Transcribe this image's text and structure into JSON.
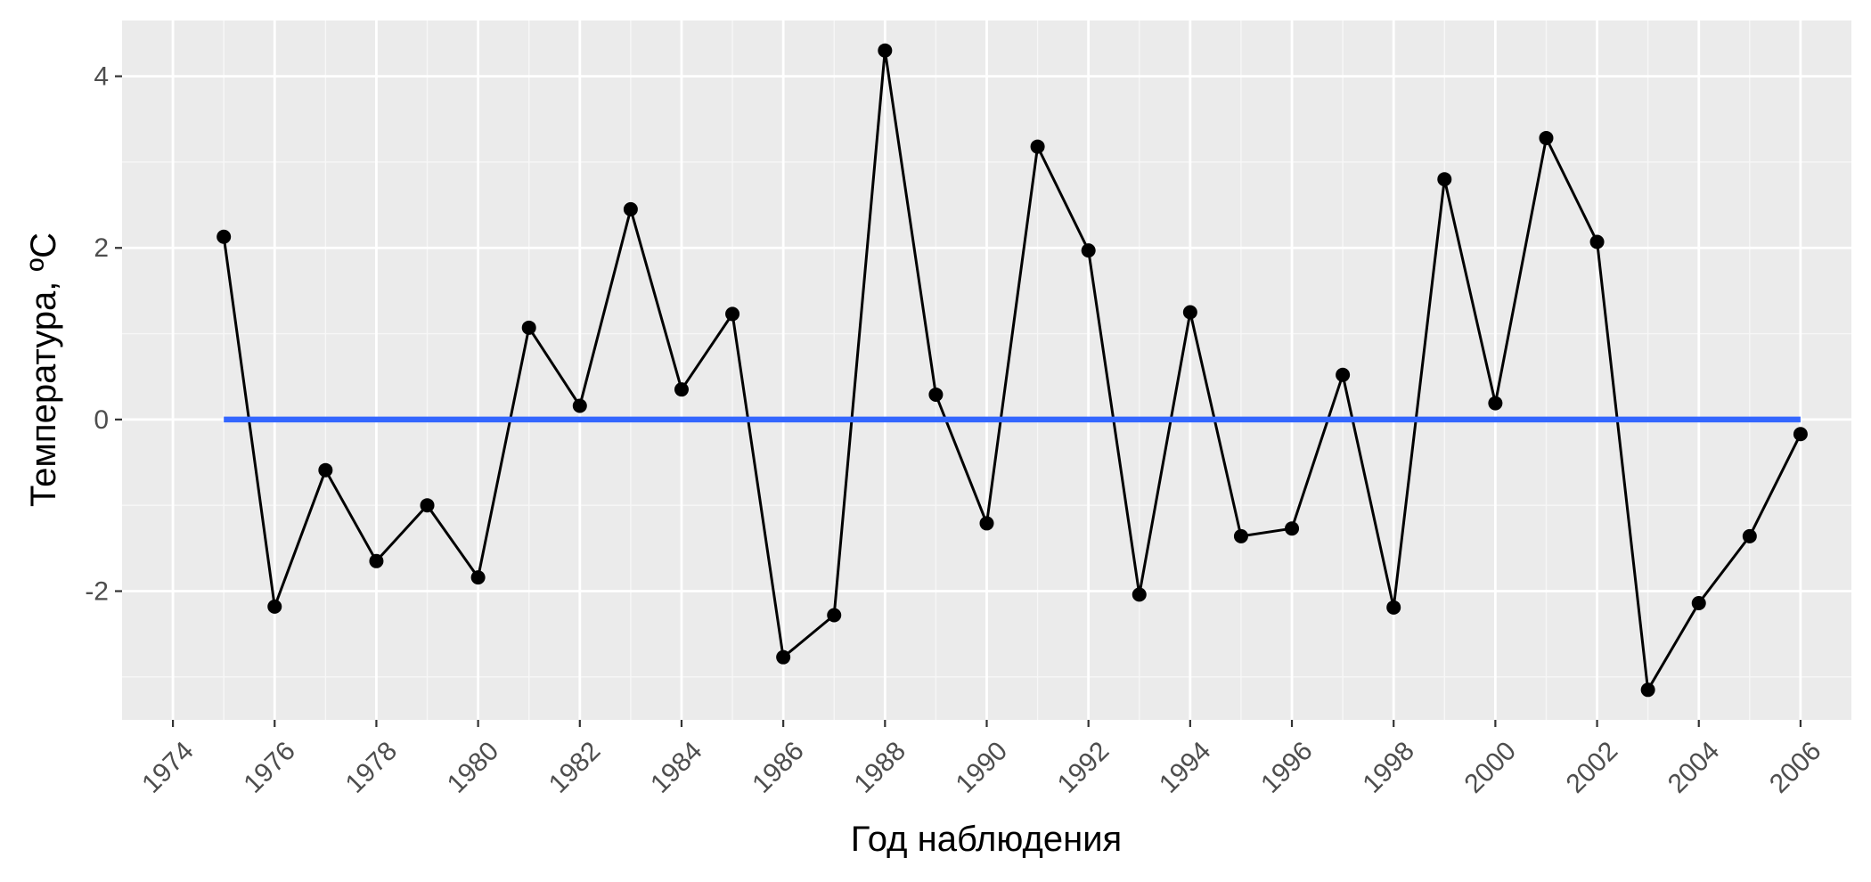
{
  "chart_data": {
    "type": "line",
    "title": "",
    "xlabel": "Год наблюдения",
    "ylabel": "Температура, ºС",
    "xlim": [
      1973.0,
      2007.0
    ],
    "ylim": [
      -3.5,
      4.65
    ],
    "x_ticks": [
      1974,
      1976,
      1978,
      1980,
      1982,
      1984,
      1986,
      1988,
      1990,
      1992,
      1994,
      1996,
      1998,
      2000,
      2002,
      2004,
      2006
    ],
    "x_tick_labels": [
      "1974",
      "1976",
      "1978",
      "1980",
      "1982",
      "1984",
      "1986",
      "1988",
      "1990",
      "1992",
      "1994",
      "1996",
      "1998",
      "2000",
      "2002",
      "2004",
      "2006"
    ],
    "y_ticks": [
      -2,
      0,
      2,
      4
    ],
    "y_tick_labels": [
      "-2",
      "0",
      "2",
      "4"
    ],
    "grid": true,
    "background": "#ebebeb",
    "series": [
      {
        "style": "line+points",
        "color": "#000000",
        "x": [
          1975,
          1976,
          1977,
          1978,
          1979,
          1980,
          1981,
          1982,
          1983,
          1984,
          1985,
          1986,
          1987,
          1988,
          1989,
          1990,
          1991,
          1992,
          1993,
          1994,
          1995,
          1996,
          1997,
          1998,
          1999,
          2000,
          2001,
          2002,
          2003,
          2004,
          2005,
          2006
        ],
        "y": [
          2.13,
          -2.18,
          -0.59,
          -1.65,
          -1.0,
          -1.84,
          1.07,
          0.16,
          2.45,
          0.35,
          1.23,
          -2.77,
          -2.28,
          4.3,
          0.29,
          -1.21,
          3.18,
          1.97,
          -2.04,
          1.25,
          -1.36,
          -1.27,
          0.52,
          -2.19,
          2.8,
          0.19,
          3.28,
          2.07,
          -3.15,
          -2.14,
          -1.36,
          -0.17
        ]
      },
      {
        "style": "line",
        "color": "#3366ff",
        "x": [
          1975,
          2006
        ],
        "y": [
          0,
          0
        ]
      }
    ]
  }
}
